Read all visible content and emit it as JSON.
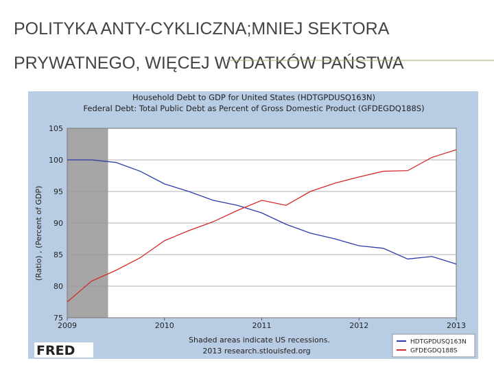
{
  "slide": {
    "title": [
      "POLITYKA ANTY-CYKLICZNA;MNIEJ SEKTORA",
      "PRYWATNEGO, WIĘCEJ WYDATKÓW  PAŃSTWA"
    ]
  },
  "chart_data": {
    "type": "line",
    "title": "Household Debt to GDP for United States (HDTGPDUSQ163N)",
    "subtitle": "Federal Debt: Total Public Debt as Percent of Gross Domestic Product (GFDEGDQ188S)",
    "y_label": "(Ratio) , (Percent of GDP)",
    "note": "Shaded areas indicate US recessions.",
    "source": "2013 research.stlouisfed.org",
    "logo": "FRED",
    "x": [
      2009,
      2009.25,
      2009.5,
      2009.75,
      2010,
      2010.25,
      2010.5,
      2010.75,
      2011,
      2011.25,
      2011.5,
      2011.75,
      2012,
      2012.25,
      2012.5,
      2012.75,
      2013
    ],
    "series": [
      {
        "name": "HDTGPDUSQ163N",
        "color": "#2b3aa8",
        "values": [
          100,
          100,
          99.6,
          98.2,
          96.2,
          95,
          93.6,
          92.8,
          91.6,
          89.8,
          88.4,
          87.5,
          86.4,
          86,
          84.3,
          84.7,
          83.5
        ]
      },
      {
        "name": "GFDEGDQ188S",
        "color": "#d42a2a",
        "values": [
          77.5,
          80.8,
          82.5,
          84.5,
          87.2,
          88.8,
          90.2,
          92,
          93.6,
          92.8,
          95,
          96.3,
          97.3,
          98.2,
          98.3,
          100.4,
          101.6
        ]
      }
    ],
    "recession": {
      "x": [
        2009,
        2009.42
      ],
      "color": "#a6a6a6"
    },
    "xlim": [
      2009,
      2013
    ],
    "xticks": [
      2009,
      2010,
      2011,
      2012,
      2013
    ],
    "ylim": [
      75,
      105
    ],
    "yticks": [
      75,
      80,
      85,
      90,
      95,
      100,
      105
    ],
    "grid": true,
    "legend": "bottom-right"
  }
}
